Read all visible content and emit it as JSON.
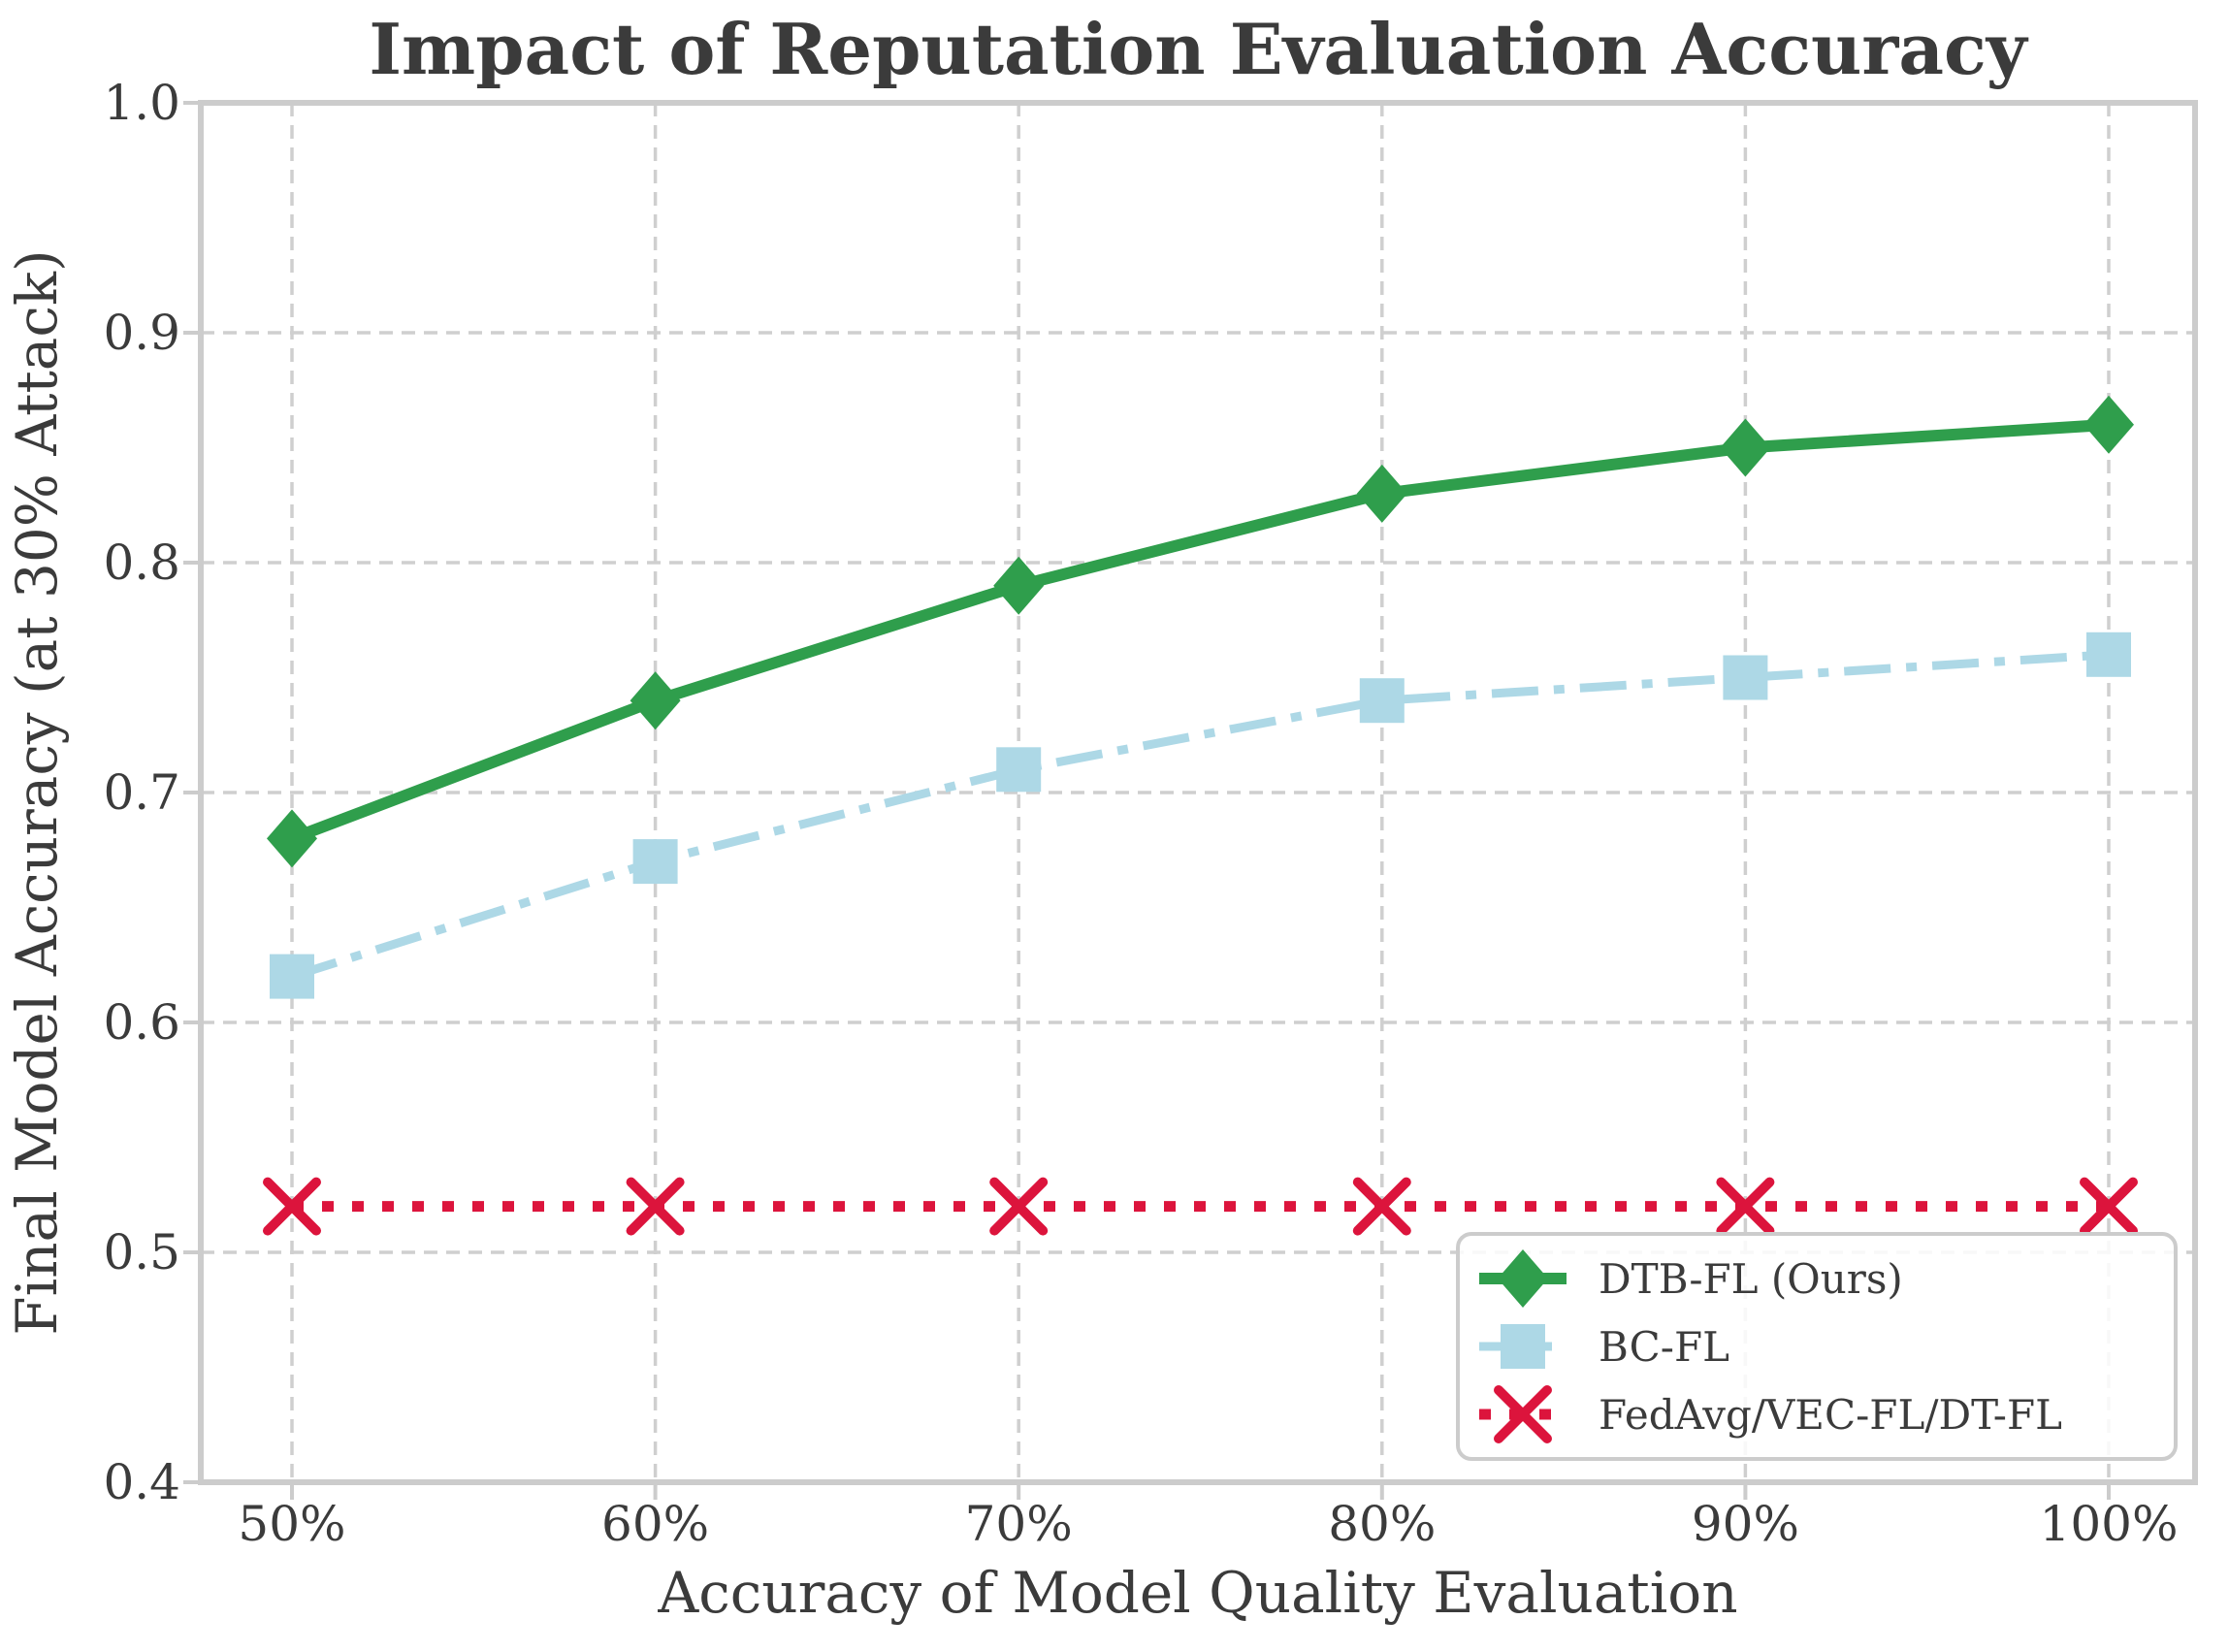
{
  "title": "Impact of Reputation Evaluation Accuracy",
  "chart_data": {
    "type": "line",
    "title": "Impact of Reputation Evaluation Accuracy",
    "xlabel": "Accuracy of Model Quality Evaluation",
    "ylabel": "Final Model Accuracy (at 30% Attack)",
    "categories": [
      "50%",
      "60%",
      "70%",
      "80%",
      "90%",
      "100%"
    ],
    "series": [
      {
        "name": "DTB-FL (Ours)",
        "values": [
          0.68,
          0.74,
          0.79,
          0.83,
          0.85,
          0.86
        ],
        "color": "#2f9e4c",
        "line_style": "solid",
        "marker": "diamond"
      },
      {
        "name": "BC-FL",
        "values": [
          0.62,
          0.67,
          0.71,
          0.74,
          0.75,
          0.76
        ],
        "color": "#add8e6",
        "line_style": "dash-dot",
        "marker": "square"
      },
      {
        "name": "FedAvg/VEC-FL/DT-FL",
        "values": [
          0.52,
          0.52,
          0.52,
          0.52,
          0.52,
          0.52
        ],
        "color": "#dc143c",
        "line_style": "dotted",
        "marker": "x"
      }
    ],
    "ylim": [
      0.4,
      1.0
    ],
    "y_ticks": [
      "0.4",
      "0.5",
      "0.6",
      "0.7",
      "0.8",
      "0.9",
      "1.0"
    ],
    "grid": true,
    "legend_position": "lower right"
  },
  "colors": {
    "grid": "#cfcfcf",
    "spine": "#cccccc",
    "text": "#3b3b3b",
    "legend_border": "#cccccc",
    "series_green": "#2f9e4c",
    "series_blue": "#add8e6",
    "series_red": "#dc143c"
  }
}
